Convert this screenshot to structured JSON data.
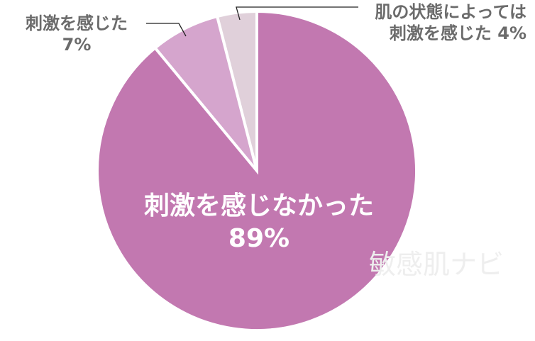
{
  "chart_data": {
    "type": "pie",
    "categories": [
      "刺激を感じなかった",
      "刺激を感じた",
      "肌の状態によっては刺激を感じた"
    ],
    "values": [
      89,
      7,
      4
    ],
    "colors": [
      "#c278b0",
      "#d5a5cd",
      "#e0d0da"
    ],
    "labels": {
      "main": {
        "name": "刺激を感じなかった",
        "value": "89%"
      },
      "felt": {
        "name": "刺激を感じた",
        "value": "7%"
      },
      "depends": {
        "line1": "肌の状態によっては",
        "line2": "刺激を感じた 4%"
      }
    }
  },
  "watermark": "敏感肌ナビ"
}
